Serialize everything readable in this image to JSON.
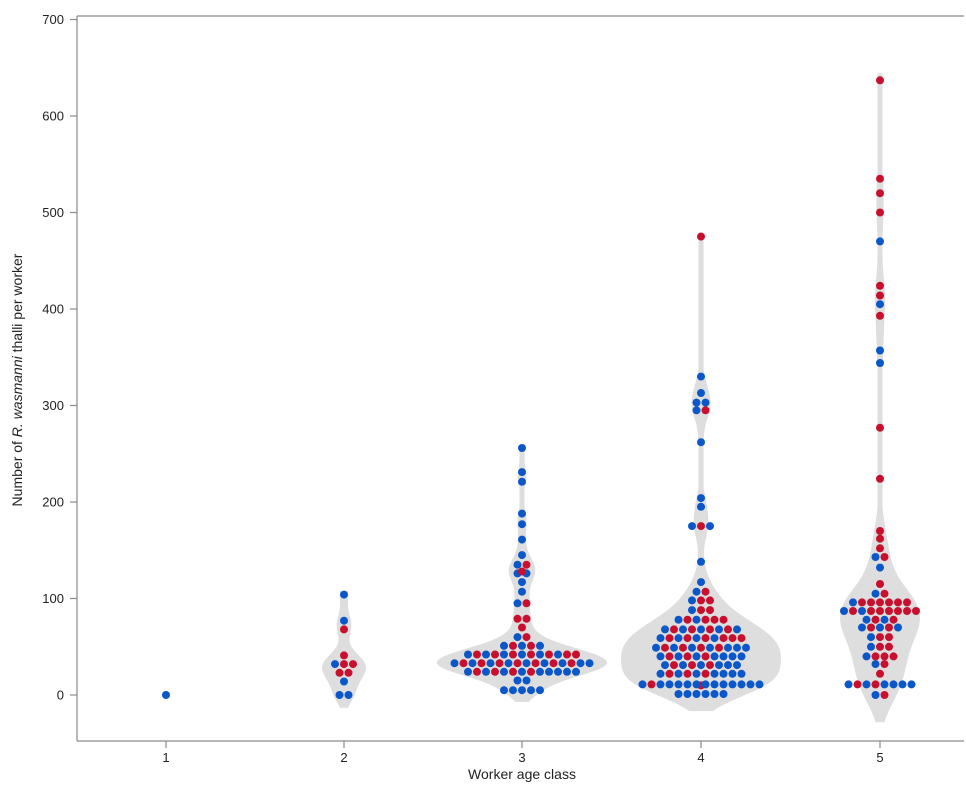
{
  "chart_data": {
    "type": "scatter",
    "subtype": "violin-beeswarm",
    "xlabel": "Worker age class",
    "ylabel_parts": [
      "Number of ",
      "R. wasmanni",
      " thalli per worker"
    ],
    "categories": [
      "1",
      "2",
      "3",
      "4",
      "5"
    ],
    "ylim": [
      -45,
      700
    ],
    "yticks": [
      0,
      100,
      200,
      300,
      400,
      500,
      600,
      700
    ],
    "grid": false,
    "legend": "none",
    "colors": {
      "red": "#c8102e",
      "blue": "#0a57c9",
      "violin": "#dedede"
    },
    "series": [
      {
        "category": "1",
        "red": [],
        "blue": [
          0
        ]
      },
      {
        "category": "2",
        "red": [
          23,
          23,
          32,
          32,
          41,
          68
        ],
        "blue": [
          0,
          0,
          14,
          32,
          77,
          104
        ]
      },
      {
        "category": "3",
        "red": [
          24,
          24,
          24,
          24,
          33,
          33,
          33,
          33,
          33,
          33,
          33,
          42,
          42,
          42,
          42,
          42,
          42,
          42,
          51,
          51,
          60,
          70,
          79,
          79,
          95,
          128,
          135
        ],
        "blue": [
          5,
          5,
          5,
          5,
          5,
          15,
          15,
          24,
          24,
          24,
          24,
          24,
          24,
          24,
          24,
          24,
          33,
          33,
          33,
          33,
          33,
          33,
          33,
          33,
          33,
          42,
          42,
          42,
          42,
          42,
          42,
          51,
          51,
          51,
          60,
          95,
          107,
          117,
          126,
          126,
          135,
          145,
          161,
          177,
          188,
          221,
          231,
          256
        ]
      },
      {
        "category": "4",
        "red": [
          10,
          11,
          22,
          22,
          22,
          31,
          31,
          31,
          40,
          40,
          40,
          49,
          49,
          49,
          49,
          59,
          59,
          59,
          59,
          59,
          59,
          68,
          68,
          68,
          68,
          78,
          78,
          78,
          78,
          88,
          88,
          98,
          98,
          107,
          175,
          295,
          475
        ],
        "blue": [
          1,
          1,
          1,
          1,
          1,
          1,
          11,
          11,
          11,
          11,
          11,
          11,
          11,
          11,
          11,
          11,
          11,
          11,
          11,
          22,
          22,
          22,
          22,
          22,
          22,
          22,
          31,
          31,
          31,
          31,
          31,
          31,
          40,
          40,
          40,
          40,
          40,
          40,
          40,
          49,
          49,
          49,
          49,
          49,
          49,
          49,
          59,
          59,
          59,
          59,
          68,
          68,
          68,
          68,
          68,
          78,
          78,
          88,
          98,
          107,
          117,
          138,
          175,
          175,
          195,
          204,
          262,
          295,
          303,
          303,
          313,
          330
        ]
      },
      {
        "category": "5",
        "red": [
          0,
          11,
          11,
          22,
          32,
          40,
          40,
          40,
          50,
          50,
          60,
          60,
          70,
          70,
          78,
          78,
          87,
          87,
          87,
          87,
          87,
          87,
          87,
          96,
          96,
          96,
          96,
          96,
          96,
          105,
          115,
          143,
          152,
          162,
          170,
          224,
          277,
          393,
          414,
          424,
          500,
          520,
          535,
          637
        ],
        "blue": [
          0,
          11,
          11,
          11,
          11,
          11,
          11,
          32,
          40,
          50,
          60,
          70,
          70,
          70,
          78,
          78,
          87,
          87,
          96,
          105,
          132,
          143,
          344,
          357,
          405,
          470
        ]
      }
    ]
  }
}
